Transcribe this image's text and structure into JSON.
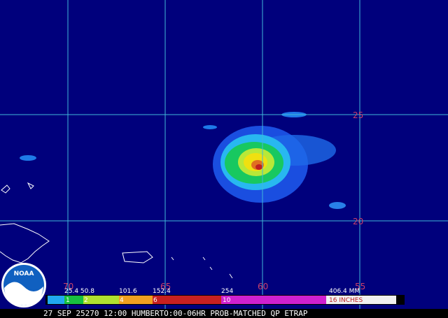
{
  "grid": {
    "latitudes": [
      "25",
      "20"
    ],
    "longitudes": [
      "70",
      "65",
      "60",
      "55"
    ]
  },
  "colorbar": {
    "mm_labels": [
      "25.4 50.8",
      "101.6",
      "152.4",
      "254",
      "406.4 MM"
    ],
    "inch_labels": [
      "1",
      "2",
      "4",
      "6",
      "10",
      "16 INCHES"
    ]
  },
  "footer": "27 SEP 25270 12:00 HUMBERTO:00-06HR PROB-MATCHED QP ETRAP",
  "logo": "NOAA"
}
